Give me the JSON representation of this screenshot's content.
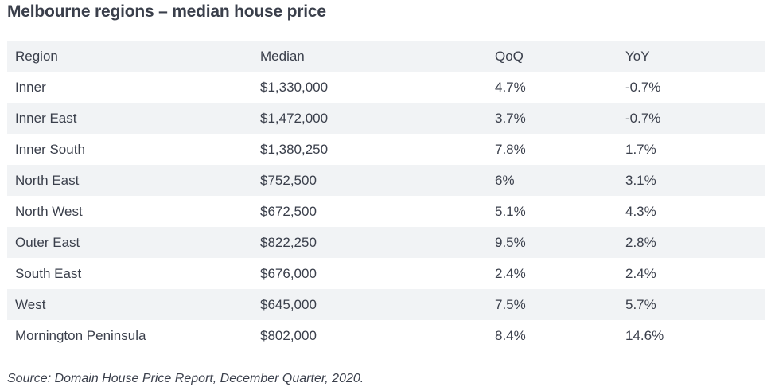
{
  "title": "Melbourne regions – median house price",
  "table": {
    "headers": [
      "Region",
      "Median",
      "QoQ",
      "YoY"
    ],
    "rows": [
      [
        "Inner",
        "$1,330,000",
        "4.7%",
        "-0.7%"
      ],
      [
        "Inner East",
        "$1,472,000",
        "3.7%",
        "-0.7%"
      ],
      [
        "Inner South",
        "$1,380,250",
        "7.8%",
        "1.7%"
      ],
      [
        "North East",
        "$752,500",
        "6%",
        "3.1%"
      ],
      [
        "North West",
        "$672,500",
        "5.1%",
        "4.3%"
      ],
      [
        "Outer East",
        "$822,250",
        "9.5%",
        "2.8%"
      ],
      [
        "South East",
        "$676,000",
        "2.4%",
        "2.4%"
      ],
      [
        "West",
        "$645,000",
        "7.5%",
        "5.7%"
      ],
      [
        "Mornington Peninsula",
        "$802,000",
        "8.4%",
        "14.6%"
      ]
    ]
  },
  "source": "Source: Domain House Price Report, December Quarter, 2020.",
  "colors": {
    "text": "#3a3f4b",
    "row_shade": "#f1f3f5",
    "background": "#ffffff"
  }
}
